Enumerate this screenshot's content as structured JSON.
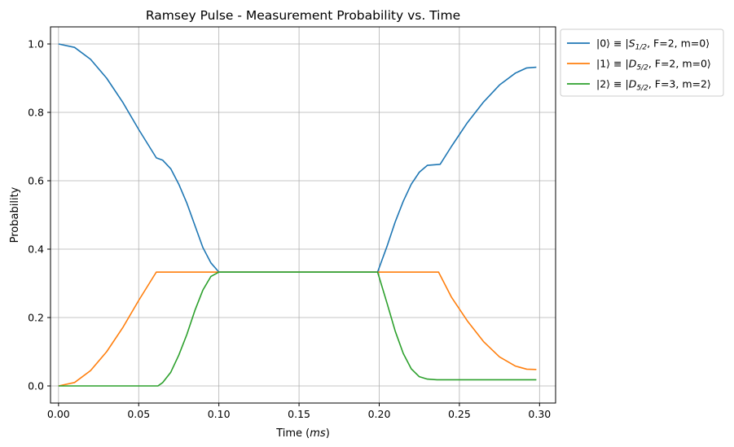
{
  "chart_data": {
    "type": "line",
    "title": "Ramsey Pulse - Measurement Probability vs. Time",
    "xlabel_text": "Time (",
    "xlabel_unit": "ms",
    "xlabel_close": ")",
    "ylabel": "Probability",
    "xlim": [
      -0.005,
      0.31
    ],
    "ylim": [
      -0.05,
      1.05
    ],
    "xticks": [
      0.0,
      0.05,
      0.1,
      0.15,
      0.2,
      0.25,
      0.3
    ],
    "xtick_labels": [
      "0.00",
      "0.05",
      "0.10",
      "0.15",
      "0.20",
      "0.25",
      "0.30"
    ],
    "yticks": [
      0.0,
      0.2,
      0.4,
      0.6,
      0.8,
      1.0
    ],
    "ytick_labels": [
      "0.0",
      "0.2",
      "0.4",
      "0.6",
      "0.8",
      "1.0"
    ],
    "grid": true,
    "legend_placement": "outside-top-right",
    "series": [
      {
        "name": "|0⟩ ≡ |S1/2, F=2, m=0⟩",
        "legend": {
          "pre": "|0⟩ ≡ |",
          "sym": "S",
          "sub": "1/2",
          "post": ", F=2, m=0⟩"
        },
        "color": "#1f77b4",
        "x": [
          0.0,
          0.01,
          0.02,
          0.03,
          0.04,
          0.05,
          0.061,
          0.065,
          0.07,
          0.075,
          0.08,
          0.085,
          0.09,
          0.095,
          0.1,
          0.125,
          0.15,
          0.175,
          0.199,
          0.205,
          0.21,
          0.215,
          0.22,
          0.225,
          0.23,
          0.238,
          0.245,
          0.255,
          0.265,
          0.275,
          0.285,
          0.292,
          0.298
        ],
        "y": [
          1.0,
          0.99,
          0.955,
          0.9,
          0.83,
          0.75,
          0.667,
          0.66,
          0.635,
          0.59,
          0.535,
          0.47,
          0.405,
          0.36,
          0.333,
          0.333,
          0.333,
          0.333,
          0.333,
          0.41,
          0.48,
          0.54,
          0.59,
          0.625,
          0.645,
          0.648,
          0.7,
          0.77,
          0.83,
          0.88,
          0.915,
          0.93,
          0.932
        ]
      },
      {
        "name": "|1⟩ ≡ |D5/2, F=2, m=0⟩",
        "legend": {
          "pre": "|1⟩ ≡ |",
          "sym": "D",
          "sub": "5/2",
          "post": ", F=2, m=0⟩"
        },
        "color": "#ff7f0e",
        "x": [
          0.0,
          0.01,
          0.02,
          0.03,
          0.04,
          0.05,
          0.061,
          0.1,
          0.15,
          0.199,
          0.237,
          0.245,
          0.255,
          0.265,
          0.275,
          0.285,
          0.292,
          0.298
        ],
        "y": [
          0.0,
          0.01,
          0.045,
          0.1,
          0.17,
          0.25,
          0.333,
          0.333,
          0.333,
          0.333,
          0.333,
          0.26,
          0.19,
          0.13,
          0.085,
          0.058,
          0.049,
          0.048
        ]
      },
      {
        "name": "|2⟩ ≡ |D5/2, F=3, m=2⟩",
        "legend": {
          "pre": "|2⟩ ≡ |",
          "sym": "D",
          "sub": "5/2",
          "post": ", F=3, m=2⟩"
        },
        "color": "#2ca02c",
        "x": [
          0.0,
          0.03,
          0.062,
          0.065,
          0.07,
          0.075,
          0.08,
          0.085,
          0.09,
          0.095,
          0.1,
          0.15,
          0.199,
          0.205,
          0.21,
          0.215,
          0.22,
          0.225,
          0.23,
          0.236,
          0.25,
          0.275,
          0.298
        ],
        "y": [
          0.0,
          0.0,
          0.0,
          0.01,
          0.04,
          0.09,
          0.15,
          0.22,
          0.28,
          0.32,
          0.333,
          0.333,
          0.333,
          0.24,
          0.16,
          0.095,
          0.05,
          0.027,
          0.02,
          0.018,
          0.018,
          0.018,
          0.018
        ]
      }
    ]
  }
}
